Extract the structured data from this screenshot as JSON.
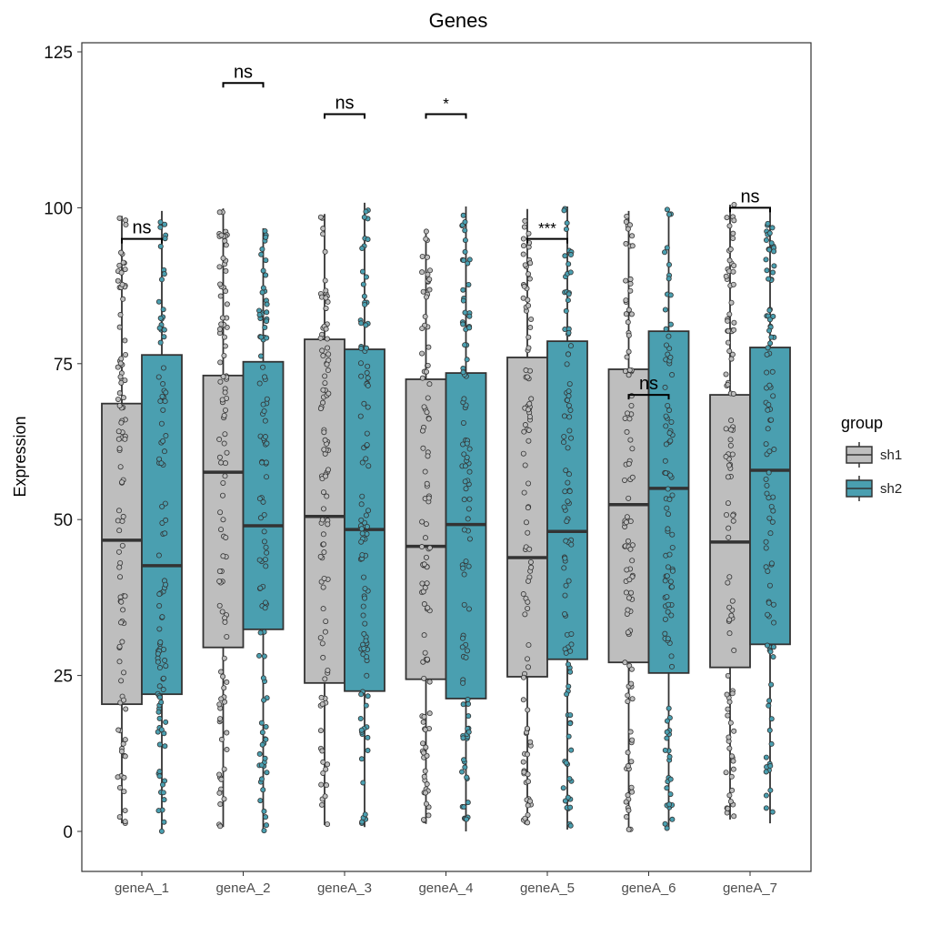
{
  "chart_data": {
    "type": "boxplot",
    "title": "Genes",
    "xlabel": "",
    "ylabel": "Expression",
    "ylim": [
      -6,
      126
    ],
    "yticks": [
      0,
      25,
      50,
      75,
      100,
      125
    ],
    "categories": [
      "geneA_1",
      "geneA_2",
      "geneA_3",
      "geneA_4",
      "geneA_5",
      "geneA_6",
      "geneA_7"
    ],
    "legend": {
      "title": "group",
      "position": "right",
      "entries": [
        "sh1",
        "sh2"
      ]
    },
    "colors": {
      "sh1": "#bebebe",
      "sh2": "#4a9fb0"
    },
    "series": [
      {
        "name": "sh1",
        "boxes": [
          {
            "min": 1.3,
            "q1": 20.4,
            "median": 46.7,
            "q3": 68.6,
            "max": 98.7
          },
          {
            "min": 0.7,
            "q1": 29.5,
            "median": 57.6,
            "q3": 73.1,
            "max": 99.9
          },
          {
            "min": 1.0,
            "q1": 23.8,
            "median": 50.5,
            "q3": 78.9,
            "max": 99.0
          },
          {
            "min": 1.2,
            "q1": 24.4,
            "median": 45.7,
            "q3": 72.5,
            "max": 96.6
          },
          {
            "min": 1.2,
            "q1": 24.8,
            "median": 43.9,
            "q3": 76.0,
            "max": 99.8
          },
          {
            "min": 0.3,
            "q1": 27.1,
            "median": 52.4,
            "q3": 74.1,
            "max": 99.5
          },
          {
            "min": 1.9,
            "q1": 26.3,
            "median": 46.4,
            "q3": 70.0,
            "max": 100.5
          }
        ]
      },
      {
        "name": "sh2",
        "boxes": [
          {
            "min": 0.0,
            "q1": 22.0,
            "median": 42.6,
            "q3": 76.4,
            "max": 99.5
          },
          {
            "min": 0.1,
            "q1": 32.4,
            "median": 49.0,
            "q3": 75.3,
            "max": 96.7
          },
          {
            "min": 0.7,
            "q1": 22.5,
            "median": 48.4,
            "q3": 77.3,
            "max": 100.8
          },
          {
            "min": 0.0,
            "q1": 21.3,
            "median": 49.2,
            "q3": 73.5,
            "max": 100.2
          },
          {
            "min": 0.3,
            "q1": 27.6,
            "median": 48.1,
            "q3": 78.6,
            "max": 100.2
          },
          {
            "min": 0.3,
            "q1": 25.4,
            "median": 55.0,
            "q3": 80.2,
            "max": 99.8
          },
          {
            "min": 1.3,
            "q1": 30.0,
            "median": 57.9,
            "q3": 77.6,
            "max": 99.5
          }
        ]
      }
    ],
    "significance": [
      {
        "label": "ns",
        "y": 95
      },
      {
        "label": "ns",
        "y": 120
      },
      {
        "label": "ns",
        "y": 115
      },
      {
        "label": "*",
        "y": 115
      },
      {
        "label": "***",
        "y": 95
      },
      {
        "label": "ns",
        "y": 70
      },
      {
        "label": "ns",
        "y": 100
      }
    ]
  }
}
